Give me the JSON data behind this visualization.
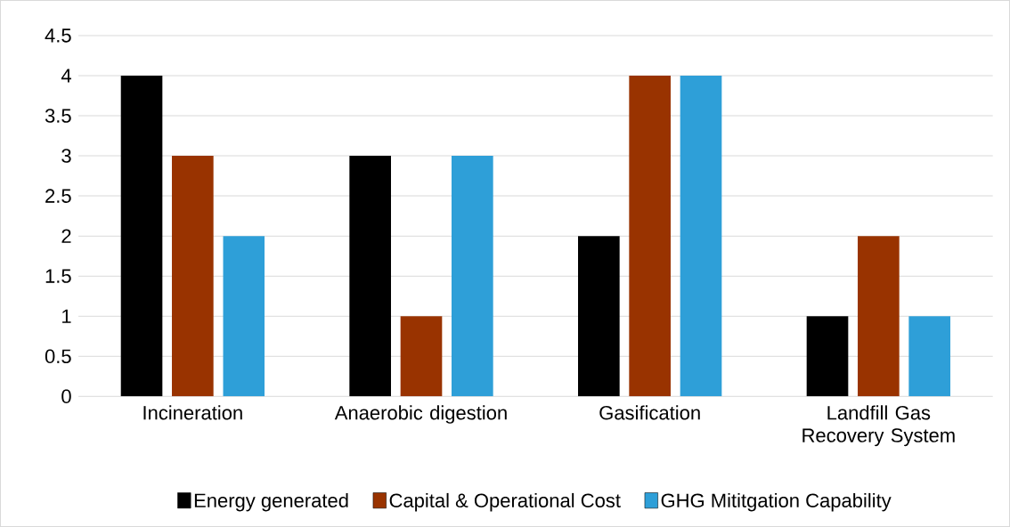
{
  "chart_data": {
    "type": "bar",
    "categories": [
      "Incineration",
      "Anaerobic digestion",
      "Gasification",
      "Landfill Gas Recovery System"
    ],
    "series": [
      {
        "name": "Energy generated",
        "color": "#000000",
        "values": [
          4,
          3,
          2,
          1
        ]
      },
      {
        "name": "Capital & Operational Cost",
        "color": "#993300",
        "values": [
          3,
          1,
          4,
          2
        ]
      },
      {
        "name": "GHG Mititgation Capability",
        "color": "#2e9fd8",
        "values": [
          2,
          3,
          4,
          1
        ]
      }
    ],
    "ylim": [
      0,
      4.5
    ],
    "yticks": [
      0,
      0.5,
      1,
      1.5,
      2,
      2.5,
      3,
      3.5,
      4,
      4.5
    ],
    "grid": "y",
    "legend": "bottom"
  }
}
